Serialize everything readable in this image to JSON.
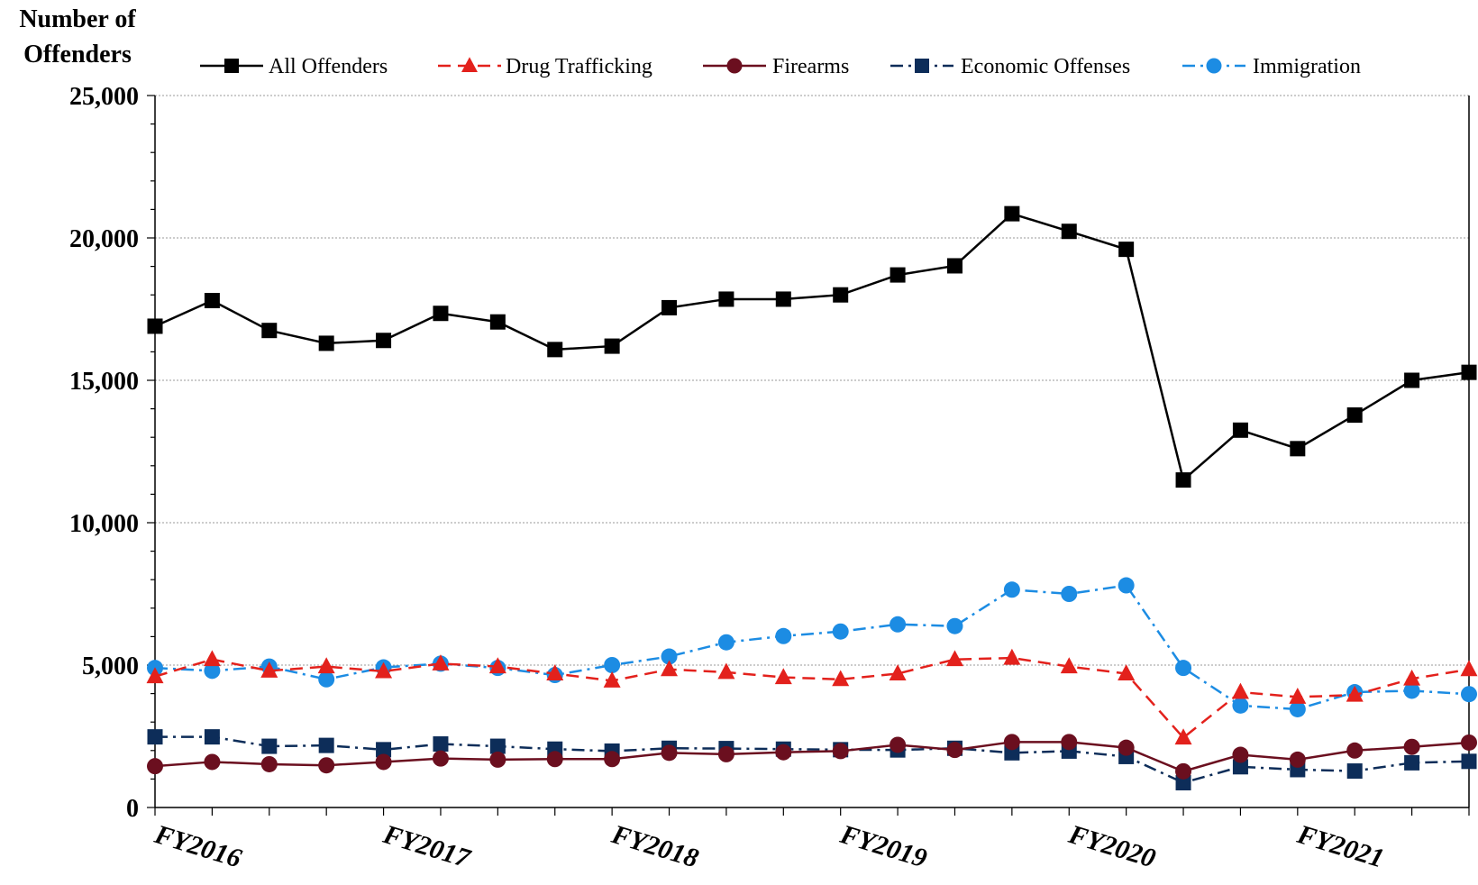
{
  "chart_data": {
    "type": "line",
    "ylabel": [
      "Number of",
      "Offenders"
    ],
    "xlabel": "",
    "ylim": [
      0,
      25000
    ],
    "yticks": [
      0,
      5000,
      10000,
      15000,
      20000,
      25000
    ],
    "ytick_labels": [
      "0",
      "5,000",
      "10,000",
      "15,000",
      "20,000",
      "25,000"
    ],
    "grid": "horizontal dotted",
    "legend_position": "top",
    "x_tick_labels": [
      {
        "label": "FY2016",
        "index": 0
      },
      {
        "label": "FY2017",
        "index": 4
      },
      {
        "label": "FY2018",
        "index": 8
      },
      {
        "label": "FY2019",
        "index": 12
      },
      {
        "label": "FY2020",
        "index": 16
      },
      {
        "label": "FY2021",
        "index": 20
      }
    ],
    "x_count": 24,
    "series": [
      {
        "name": "All Offenders",
        "color": "#000000",
        "marker": "square",
        "dash": "solid",
        "values": [
          16900,
          17800,
          16750,
          16300,
          16400,
          17350,
          17050,
          16080,
          16200,
          17550,
          17850,
          17850,
          18000,
          18700,
          19020,
          20850,
          20230,
          19600,
          11500,
          13250,
          12600,
          13780,
          15000,
          15280
        ]
      },
      {
        "name": "Drug Trafficking",
        "color": "#e3211c",
        "marker": "triangle",
        "dash": "dashed",
        "values": [
          4600,
          5200,
          4800,
          4950,
          4780,
          5050,
          4950,
          4700,
          4450,
          4850,
          4750,
          4570,
          4500,
          4700,
          5200,
          5250,
          4950,
          4700,
          2450,
          4050,
          3880,
          3950,
          4520,
          4850
        ]
      },
      {
        "name": "Firearms",
        "color": "#6b0f1f",
        "marker": "circle",
        "dash": "solid",
        "values": [
          1450,
          1600,
          1520,
          1480,
          1600,
          1720,
          1680,
          1700,
          1700,
          1920,
          1870,
          1940,
          1980,
          2200,
          2020,
          2300,
          2300,
          2100,
          1270,
          1850,
          1680,
          2000,
          2130,
          2280
        ]
      },
      {
        "name": "Economic Offenses",
        "color": "#0d2d59",
        "marker": "square",
        "dash": "dashdot",
        "values": [
          2480,
          2480,
          2150,
          2180,
          2030,
          2230,
          2150,
          2050,
          1980,
          2080,
          2070,
          2050,
          2030,
          2020,
          2080,
          1920,
          1980,
          1790,
          870,
          1430,
          1330,
          1280,
          1570,
          1620
        ]
      },
      {
        "name": "Immigration",
        "color": "#1c8ce3",
        "marker": "circle",
        "dash": "dashdot",
        "values": [
          4900,
          4800,
          4950,
          4500,
          4920,
          5050,
          4900,
          4650,
          5000,
          5300,
          5800,
          6020,
          6180,
          6430,
          6370,
          7650,
          7500,
          7800,
          4900,
          3580,
          3450,
          4050,
          4100,
          3980
        ]
      }
    ]
  }
}
